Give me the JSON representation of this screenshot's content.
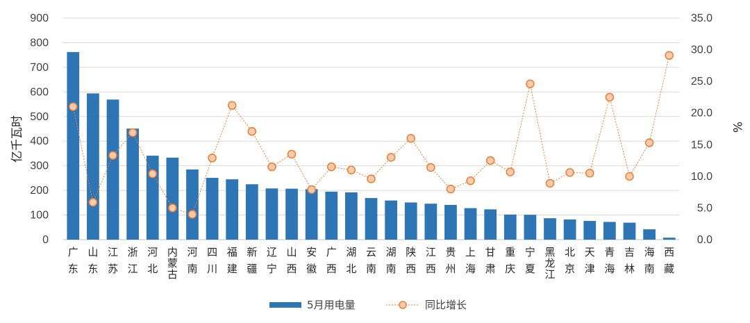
{
  "chart_data": {
    "type": "bar+line",
    "categories": [
      "广东",
      "山东",
      "江苏",
      "浙江",
      "河北",
      "内蒙古",
      "河南",
      "四川",
      "福建",
      "新疆",
      "辽宁",
      "山西",
      "安徽",
      "广西",
      "湖北",
      "云南",
      "湖南",
      "陕西",
      "江西",
      "贵州",
      "上海",
      "甘肃",
      "重庆",
      "宁夏",
      "黑龙江",
      "北京",
      "天津",
      "青海",
      "吉林",
      "海南",
      "西藏"
    ],
    "series": [
      {
        "name": "5月用电量",
        "type": "bar",
        "axis": "left",
        "color": "#2E75B6",
        "values": [
          762,
          594,
          569,
          451,
          341,
          333,
          285,
          251,
          245,
          225,
          208,
          207,
          205,
          195,
          192,
          169,
          159,
          151,
          146,
          141,
          128,
          123,
          102,
          101,
          87,
          82,
          76,
          72,
          69,
          42,
          8
        ]
      },
      {
        "name": "同比增长",
        "type": "line",
        "axis": "right",
        "color": "#ED7D31",
        "marker_fill": "#F8CBAD",
        "values": [
          21.0,
          5.9,
          13.3,
          16.9,
          10.4,
          5.0,
          4.0,
          12.9,
          21.2,
          17.1,
          11.5,
          13.5,
          7.9,
          11.5,
          11.0,
          9.6,
          13.0,
          16.0,
          11.4,
          8.0,
          9.3,
          12.5,
          10.7,
          24.6,
          8.9,
          10.6,
          10.5,
          22.5,
          10.0,
          15.3,
          29.1
        ]
      }
    ],
    "ylabel": "亿千瓦时",
    "y2label": "%",
    "ylim": [
      0,
      900
    ],
    "y2lim": [
      0,
      35
    ],
    "yticks": [
      "0",
      "100",
      "200",
      "300",
      "400",
      "500",
      "600",
      "700",
      "800",
      "900"
    ],
    "y2ticks": [
      "0.0",
      "5.0",
      "10.0",
      "15.0",
      "20.0",
      "25.0",
      "30.0",
      "35.0"
    ],
    "grid": "horizontal",
    "legend_position": "bottom"
  }
}
